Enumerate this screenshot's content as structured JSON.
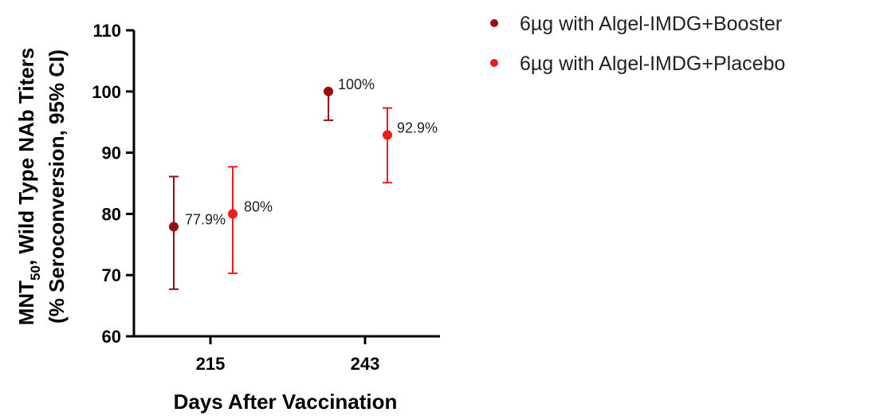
{
  "chart_data": {
    "type": "scatter",
    "categories": [
      "215",
      "243"
    ],
    "xlabel": "Days After Vaccination",
    "ylabel_line1": "MNT",
    "ylabel_sub": "50",
    "ylabel_line1_rest": ", Wild Type NAb Titers",
    "ylabel_line2": "(% Seroconversion, 95% CI)",
    "ylim": [
      60,
      110
    ],
    "yticks": [
      "60",
      "70",
      "80",
      "90",
      "100",
      "110"
    ],
    "legend_position": "top-right",
    "series": [
      {
        "name": "6µg with Algel-IMDG+Booster",
        "color": "#9b0d0d",
        "values": [
          77.9,
          100
        ],
        "ci_low": [
          67.7,
          95.3
        ],
        "ci_high": [
          86.1,
          100
        ],
        "labels": [
          "77.9%",
          "100%"
        ]
      },
      {
        "name": "6µg with Algel-IMDG+Placebo",
        "color": "#ee1b1b",
        "values": [
          80,
          92.9
        ],
        "ci_low": [
          70.3,
          85.1
        ],
        "ci_high": [
          87.7,
          97.3
        ],
        "labels": [
          "80%",
          "92.9%"
        ]
      }
    ]
  }
}
